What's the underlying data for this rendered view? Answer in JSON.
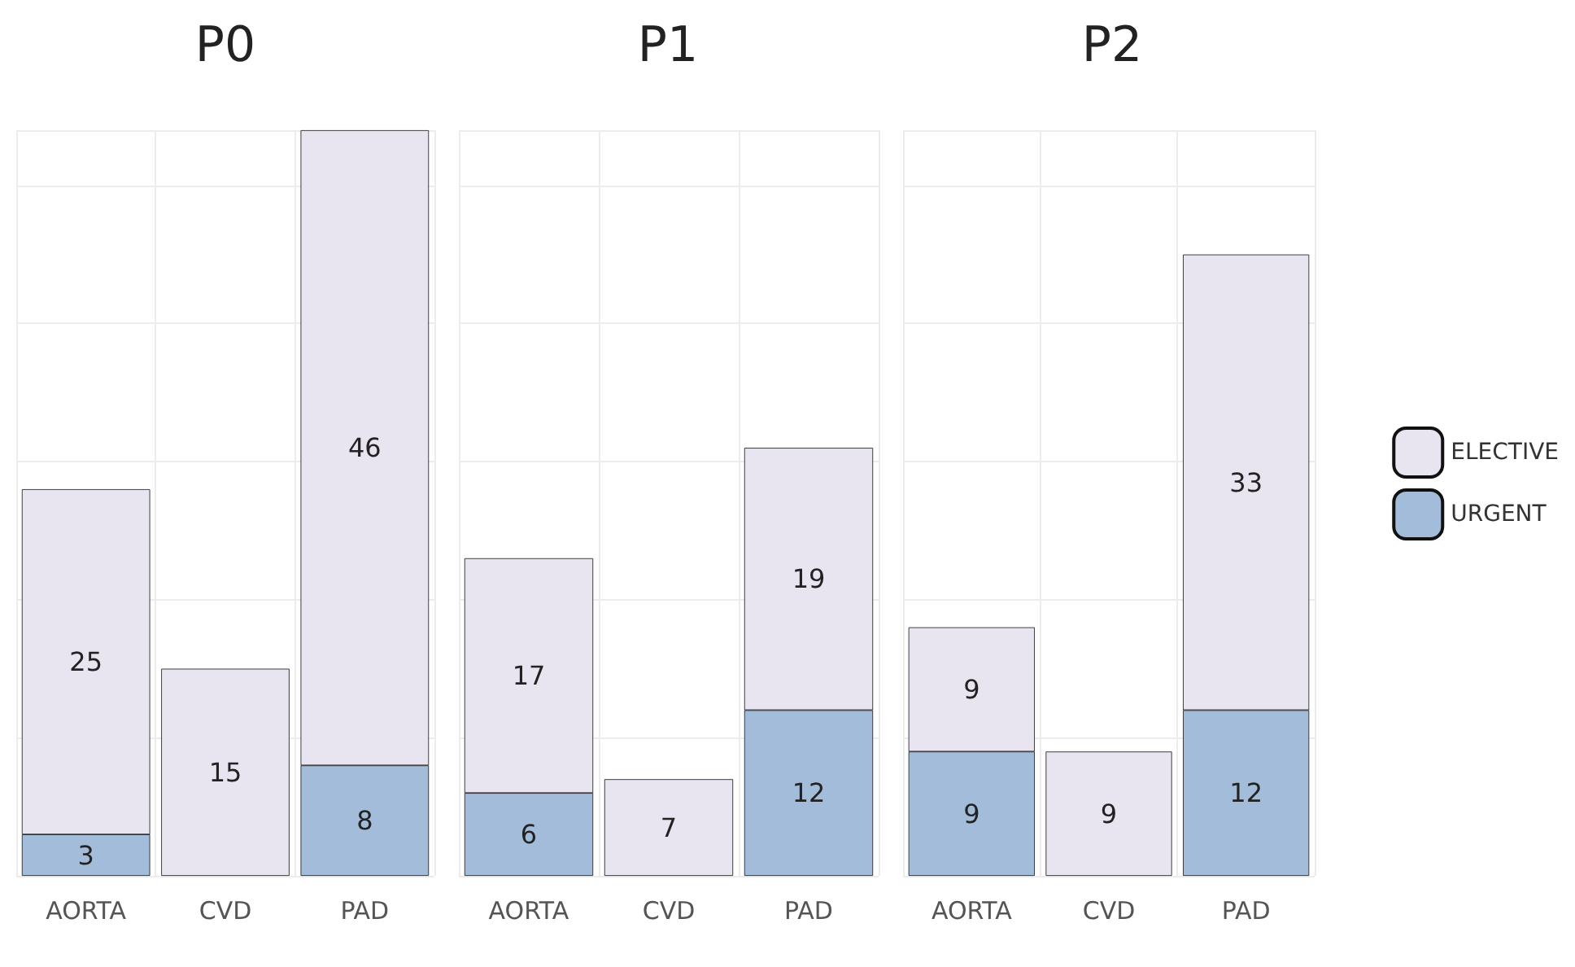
{
  "chart_data": [
    {
      "type": "bar",
      "title": "P0",
      "categories": [
        "AORTA",
        "CVD",
        "PAD"
      ],
      "stacked": true,
      "data_labels": true,
      "grid": true,
      "tick_labels": "x",
      "series": [
        {
          "color": "#a3bcd9",
          "values": [
            3,
            null,
            8
          ]
        },
        {
          "color": "#e8e4f0",
          "values": [
            25,
            15,
            46
          ]
        }
      ]
    },
    {
      "type": "bar",
      "title": "P1",
      "categories": [
        "AORTA",
        "CVD",
        "PAD"
      ],
      "stacked": true,
      "data_labels": true,
      "grid": true,
      "tick_labels": "x",
      "series": [
        {
          "color": "#a3bcd9",
          "values": [
            6,
            null,
            12
          ]
        },
        {
          "color": "#e8e4f0",
          "values": [
            17,
            7,
            19
          ]
        }
      ]
    },
    {
      "type": "bar",
      "title": "P2",
      "categories": [
        "AORTA",
        "CVD",
        "PAD"
      ],
      "stacked": true,
      "data_labels": true,
      "grid": true,
      "tick_labels": "x",
      "legend": "right",
      "series": [
        {
          "name": "URGENT",
          "color": "#a3bcd9",
          "values": [
            9,
            null,
            12
          ]
        },
        {
          "name": "ELECTIVE",
          "color": "#e8e4f0",
          "values": [
            9,
            9,
            33
          ]
        }
      ]
    }
  ]
}
